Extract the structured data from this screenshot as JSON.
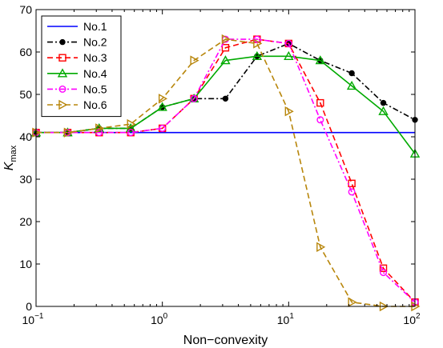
{
  "chart_data": {
    "type": "line",
    "x_scale": "log",
    "xlim": [
      0.1,
      100
    ],
    "ylim": [
      0,
      70
    ],
    "xlabel": "Non−convexity",
    "ylabel_main": "K",
    "ylabel_sub": "max",
    "x_ticks": [
      0.1,
      1,
      10,
      100
    ],
    "x_tick_labels": [
      {
        "base": "10",
        "exp": "−1"
      },
      {
        "base": "10",
        "exp": "0"
      },
      {
        "base": "10",
        "exp": "1"
      },
      {
        "base": "10",
        "exp": "2"
      }
    ],
    "y_ticks": [
      0,
      10,
      20,
      30,
      40,
      50,
      60,
      70
    ],
    "y_tick_labels": [
      "0",
      "10",
      "20",
      "30",
      "40",
      "50",
      "60",
      "70"
    ],
    "legend_position": "top-left",
    "series": [
      {
        "name": "No.1",
        "color": "#0000ff",
        "dash": "solid",
        "marker": "none",
        "x": [
          0.1,
          100
        ],
        "y": [
          41,
          41
        ]
      },
      {
        "name": "No.2",
        "color": "#000000",
        "dash": "dashdot",
        "marker": "filled-circle",
        "x": [
          0.1,
          0.178,
          0.316,
          0.562,
          1,
          1.78,
          3.16,
          5.62,
          10,
          17.8,
          31.6,
          56.2,
          100
        ],
        "y": [
          41,
          41,
          42,
          42,
          47,
          49,
          49,
          59,
          62,
          58,
          55,
          48,
          44
        ]
      },
      {
        "name": "No.3",
        "color": "#ff0000",
        "dash": "dashed",
        "marker": "square",
        "x": [
          0.1,
          0.178,
          0.316,
          0.562,
          1,
          1.78,
          3.16,
          5.62,
          10,
          17.8,
          31.6,
          56.2,
          100
        ],
        "y": [
          41,
          41,
          41,
          41,
          42,
          49,
          61,
          63,
          62,
          48,
          29,
          9,
          1
        ]
      },
      {
        "name": "No.4",
        "color": "#00aa00",
        "dash": "solid",
        "marker": "triangle-up",
        "x": [
          0.1,
          0.178,
          0.316,
          0.562,
          1,
          1.78,
          3.16,
          5.62,
          10,
          17.8,
          31.6,
          56.2,
          100
        ],
        "y": [
          41,
          41,
          42,
          42,
          47,
          49,
          58,
          59,
          59,
          58,
          52,
          46,
          36
        ]
      },
      {
        "name": "No.5",
        "color": "#ff00ff",
        "dash": "dashdot",
        "marker": "circle",
        "x": [
          0.1,
          0.178,
          0.316,
          0.562,
          1,
          1.78,
          3.16,
          5.62,
          10,
          17.8,
          31.6,
          56.2,
          100
        ],
        "y": [
          41,
          41,
          41,
          41,
          42,
          49,
          63,
          63,
          62,
          44,
          27,
          8,
          1
        ]
      },
      {
        "name": "No.6",
        "color": "#b8860b",
        "dash": "dashed",
        "marker": "triangle-right",
        "x": [
          0.1,
          0.178,
          0.316,
          0.562,
          1,
          1.78,
          3.16,
          5.62,
          10,
          17.8,
          31.6,
          56.2,
          100
        ],
        "y": [
          41,
          41,
          42,
          43,
          49,
          58,
          63,
          62,
          46,
          14,
          1,
          0,
          0
        ]
      }
    ]
  }
}
